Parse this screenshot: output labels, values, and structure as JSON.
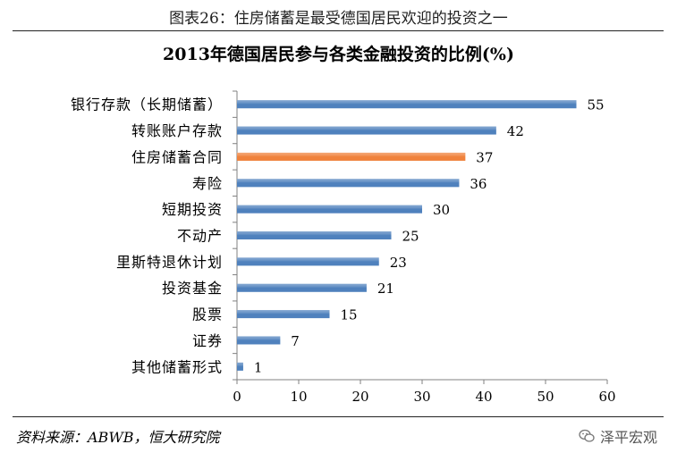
{
  "figure_title": "图表26：住房储蓄是最受德国居民欢迎的投资之一",
  "source_text": "资料来源：ABWB，恒大研究院",
  "watermark_text": "泽平宏观",
  "colors": {
    "bar": "#4f81bd",
    "bar_highlight": "#f0823c",
    "axis": "#808080"
  },
  "chart_data": {
    "type": "bar",
    "orientation": "horizontal",
    "title": "2013年德国居民参与各类金融投资的比例(%)",
    "categories": [
      "银行存款（长期储蓄）",
      "转账账户存款",
      "住房储蓄合同",
      "寿险",
      "短期投资",
      "不动产",
      "里斯特退休计划",
      "投资基金",
      "股票",
      "证券",
      "其他储蓄形式"
    ],
    "values": [
      55,
      42,
      37,
      36,
      30,
      25,
      23,
      21,
      15,
      7,
      1
    ],
    "highlight_index": 2,
    "xlim": [
      0,
      60
    ],
    "xticks": [
      0,
      10,
      20,
      30,
      40,
      50,
      60
    ],
    "grid": false,
    "data_labels": true
  }
}
